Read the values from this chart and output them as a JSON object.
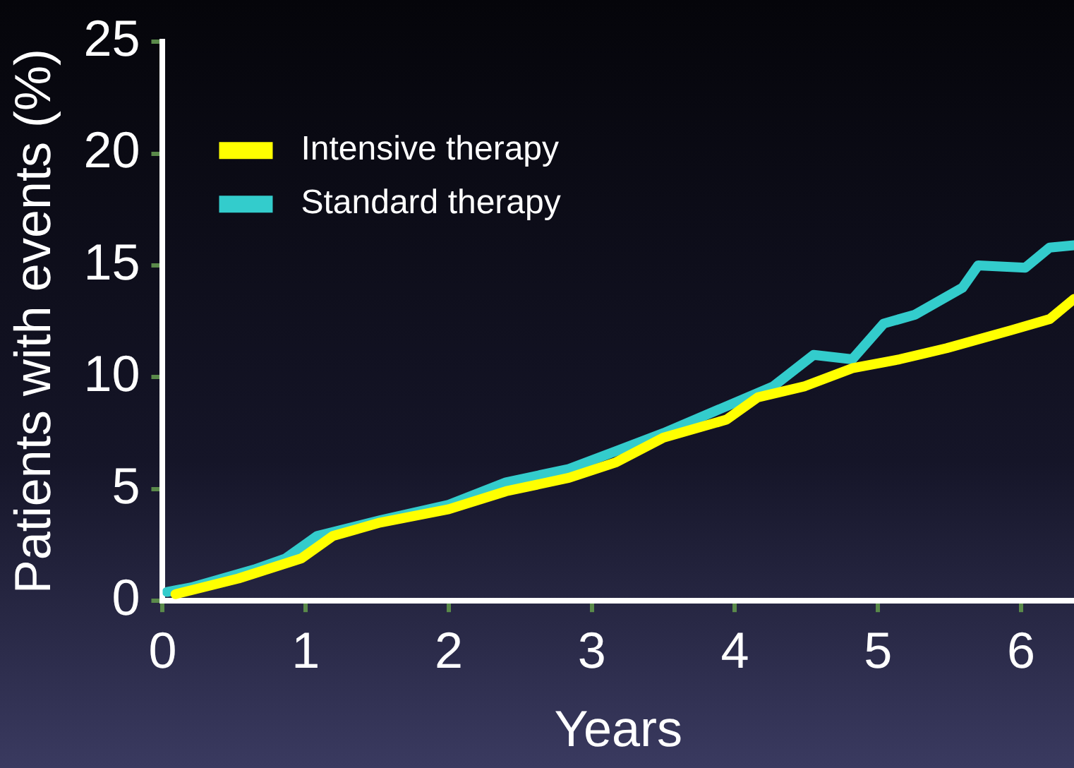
{
  "chart_data": {
    "type": "line",
    "xlabel": "Years",
    "ylabel": "Patients with events (%)",
    "xlim": [
      0,
      6.37
    ],
    "xticks": [
      0,
      1,
      2,
      3,
      4,
      5,
      6
    ],
    "ylim": [
      0,
      25
    ],
    "yticks": [
      0,
      5,
      10,
      15,
      20,
      25
    ],
    "grid": false,
    "legend": "top left",
    "marker": "none",
    "line_style": "solid",
    "series": [
      {
        "name": "Intensive therapy",
        "color": "#ffff00",
        "x": [
          0.09,
          0.53,
          0.97,
          1.19,
          1.52,
          2.0,
          2.4,
          2.84,
          3.17,
          3.5,
          3.94,
          4.16,
          4.49,
          4.82,
          5.15,
          5.48,
          5.93,
          6.2,
          6.37
        ],
        "values": [
          0.3,
          1.0,
          1.9,
          2.9,
          3.5,
          4.1,
          4.9,
          5.5,
          6.2,
          7.3,
          8.1,
          9.1,
          9.6,
          10.4,
          10.8,
          11.3,
          12.1,
          12.6,
          13.5
        ]
      },
      {
        "name": "Standard therapy",
        "color": "#33cccc",
        "x": [
          0.03,
          0.2,
          0.64,
          0.86,
          1.08,
          1.52,
          2.0,
          2.4,
          2.84,
          3.17,
          3.5,
          3.94,
          4.27,
          4.55,
          4.82,
          5.04,
          5.26,
          5.59,
          5.7,
          6.03,
          6.2,
          6.37
        ],
        "values": [
          0.4,
          0.6,
          1.4,
          1.9,
          2.9,
          3.6,
          4.3,
          5.3,
          5.9,
          6.7,
          7.5,
          8.7,
          9.6,
          11.0,
          10.8,
          12.4,
          12.8,
          14.0,
          15.0,
          14.9,
          15.8,
          15.9
        ]
      }
    ]
  }
}
